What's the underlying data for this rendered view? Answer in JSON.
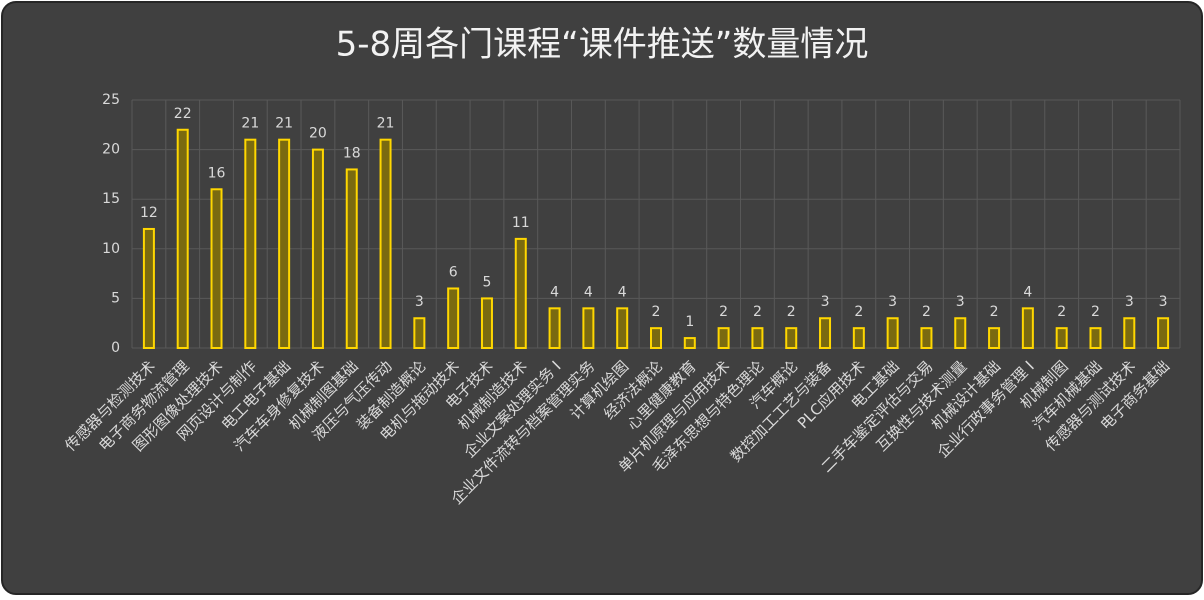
{
  "chart_data": {
    "type": "bar",
    "title": "5-8周各门课程“课件推送”数量情况",
    "categories": [
      "传感器与检测技术",
      "电子商务物流管理",
      "图形图像处理技术",
      "网页设计与制作",
      "电工电子基础",
      "汽车车身修复技术",
      "机械制图基础",
      "液压与气压传动",
      "装备制造概论",
      "电机与拖动技术",
      "电子技术",
      "机械制造技术",
      "企业文案处理实务 I",
      "企业文件流转与档案管理实务",
      "计算机绘图",
      "经济法概论",
      "心里健康教育",
      "单片机原理与应用技术",
      "毛泽东思想与特色理论",
      "汽车概论",
      "数控加工工艺与装备",
      "PLC应用技术",
      "电工基础",
      "二手车鉴定评估与交易",
      "互换性与技术测量",
      "机械设计基础",
      "企业行政事务管理 I",
      "机械制图",
      "汽车机械基础",
      "传感器与测试技术",
      "电子商务基础"
    ],
    "values": [
      12,
      22,
      16,
      21,
      21,
      20,
      18,
      21,
      3,
      6,
      5,
      11,
      4,
      4,
      4,
      2,
      1,
      2,
      2,
      2,
      3,
      2,
      3,
      2,
      3,
      2,
      4,
      2,
      2,
      3,
      3
    ],
    "color": "#ffd700",
    "ylim": [
      0,
      25
    ],
    "yticks": [
      0,
      5,
      10,
      15,
      20,
      25
    ],
    "grid": true
  }
}
